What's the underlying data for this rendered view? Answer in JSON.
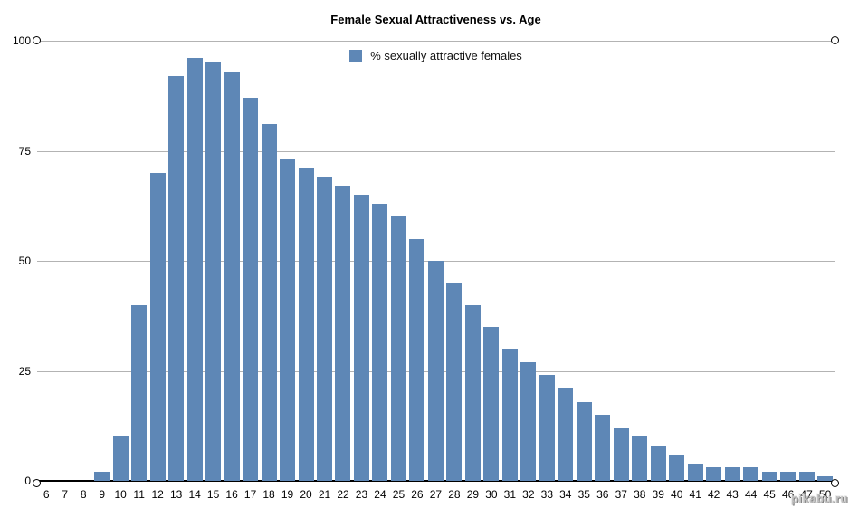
{
  "chart_data": {
    "type": "bar",
    "title": "Female Sexual Attractiveness vs. Age",
    "legend": "% sexually attractive females",
    "categories": [
      "6",
      "7",
      "8",
      "9",
      "10",
      "11",
      "12",
      "13",
      "14",
      "15",
      "16",
      "17",
      "18",
      "19",
      "20",
      "21",
      "22",
      "23",
      "24",
      "25",
      "26",
      "27",
      "28",
      "29",
      "30",
      "31",
      "32",
      "33",
      "34",
      "35",
      "36",
      "37",
      "38",
      "39",
      "40",
      "41",
      "42",
      "43",
      "44",
      "45",
      "46",
      "47",
      "50"
    ],
    "values": [
      0,
      0,
      0,
      2,
      10,
      40,
      70,
      92,
      96,
      95,
      93,
      87,
      81,
      73,
      71,
      69,
      67,
      65,
      63,
      60,
      55,
      50,
      45,
      40,
      35,
      30,
      27,
      24,
      21,
      18,
      15,
      12,
      10,
      8,
      6,
      4,
      3,
      3,
      3,
      2,
      2,
      2,
      1
    ],
    "xlabel": "",
    "ylabel": "",
    "ylim": [
      0,
      100
    ],
    "yticks": [
      0,
      25,
      50,
      75,
      100
    ],
    "grid": true,
    "legend_position": "top-center",
    "bar_color": "#5e87b6",
    "gridline_color": "#b3b3b3",
    "axis_color": "#000000"
  },
  "watermark": "pikabu.ru"
}
